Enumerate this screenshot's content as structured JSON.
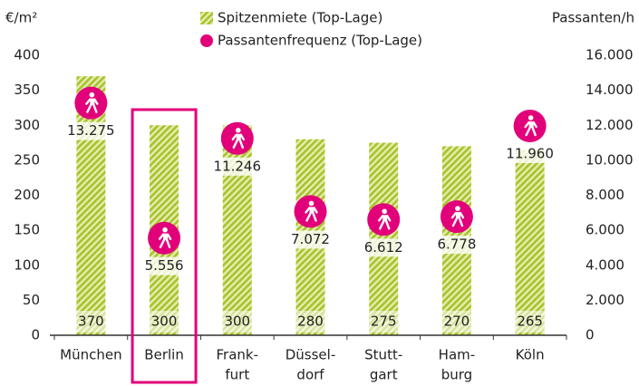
{
  "chart_data": {
    "type": "bar",
    "y_unit": "€/m²",
    "y2_unit": "Passanten/h",
    "categories": [
      "München",
      "Berlin",
      [
        "Frank-",
        "furt"
      ],
      [
        "Düssel-",
        "dorf"
      ],
      [
        "Stutt-",
        "gart"
      ],
      [
        "Ham-",
        "burg"
      ],
      "Köln"
    ],
    "highlight": "Berlin",
    "series": [
      {
        "name": "Spitzenmiete (Top-Lage)",
        "type": "bar",
        "color": "#b3c93a",
        "values": [
          370,
          300,
          300,
          280,
          275,
          270,
          265
        ]
      },
      {
        "name": "Passantenfrequenz (Top-Lage)",
        "type": "scatter",
        "axis": "y2",
        "color": "#e2007a",
        "values": [
          13275,
          5556,
          11246,
          7072,
          6612,
          6778,
          11960
        ],
        "value_labels": [
          "13.275",
          "5.556",
          "11.246",
          "7.072",
          "6.612",
          "6.778",
          "11.960"
        ]
      }
    ],
    "ylim": [
      0,
      400
    ],
    "yticks": [
      0,
      50,
      100,
      150,
      200,
      250,
      300,
      350,
      400
    ],
    "y2lim": [
      0,
      16000
    ],
    "y2ticks": [
      0,
      {
        "value": 2000,
        "label": "2.000"
      },
      {
        "value": 4000,
        "label": "4.000"
      },
      {
        "value": 6000,
        "label": "6.000"
      },
      {
        "value": 8000,
        "label": "8.000"
      },
      {
        "value": 10000,
        "label": "10.000"
      },
      {
        "value": 12000,
        "label": "12.000"
      },
      {
        "value": 14000,
        "label": "14.000"
      },
      {
        "value": 16000,
        "label": "16.000"
      }
    ]
  }
}
